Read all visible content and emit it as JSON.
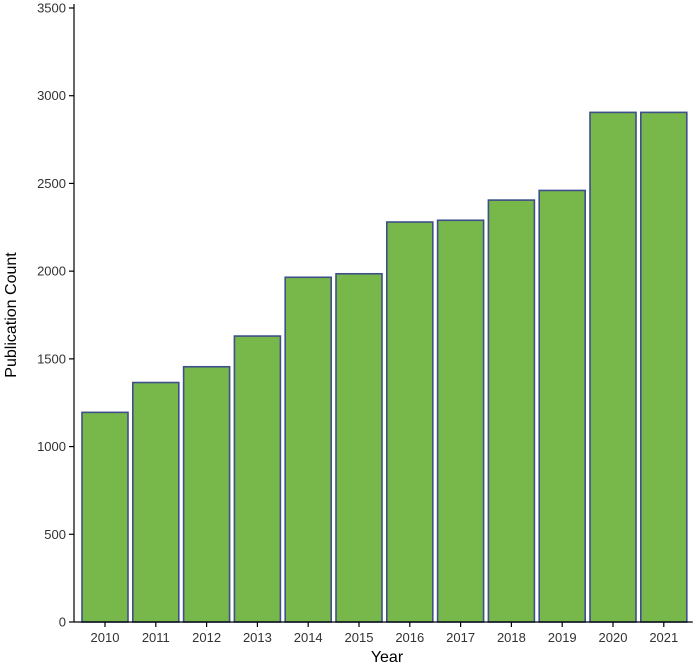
{
  "chart_data": {
    "type": "bar",
    "title": "",
    "xlabel": "Year",
    "ylabel": "Publication Count",
    "categories": [
      "2010",
      "2011",
      "2012",
      "2013",
      "2014",
      "2015",
      "2016",
      "2017",
      "2018",
      "2019",
      "2020",
      "2021"
    ],
    "values": [
      1195,
      1365,
      1455,
      1630,
      1965,
      1985,
      2280,
      2290,
      2405,
      2460,
      2905,
      2905
    ],
    "ylim": [
      0,
      3500
    ],
    "yticks": [
      "0",
      "500",
      "1000",
      "1500",
      "2000",
      "2500",
      "3000",
      "3500"
    ],
    "grid": false,
    "legend": "none",
    "colors": {
      "bar_fill": "#78b74a",
      "bar_stroke": "#3f4f8a",
      "axis": "#000000"
    }
  }
}
